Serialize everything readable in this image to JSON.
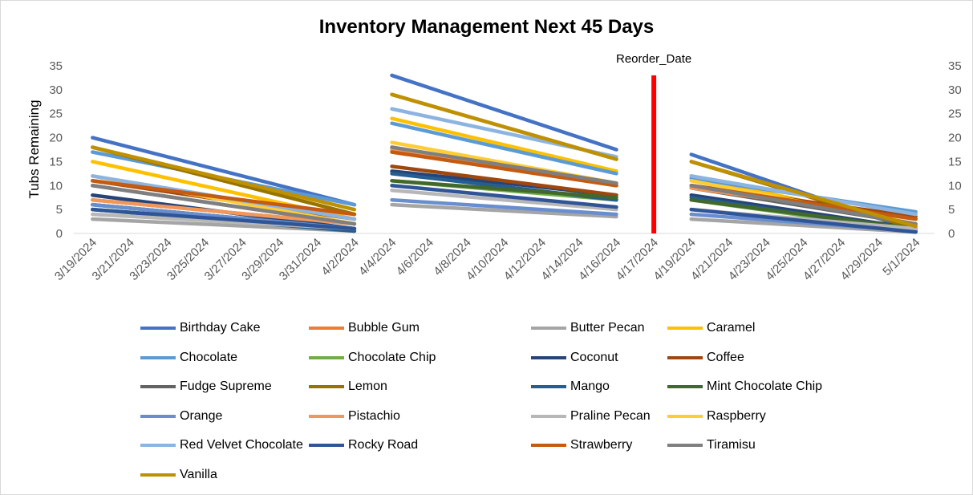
{
  "chart_data": {
    "type": "line",
    "title": "Inventory Management Next 45 Days",
    "ylabel": "Tubs Remaining",
    "xlabel": "",
    "ylim": [
      0,
      35
    ],
    "yticks": [
      0,
      5,
      10,
      15,
      20,
      25,
      30,
      35
    ],
    "secondary_y_axis": true,
    "grid": false,
    "legend_position": "bottom",
    "x_tick_labels": [
      "3/19/2024",
      "3/21/2024",
      "3/23/2024",
      "3/25/2024",
      "3/27/2024",
      "3/29/2024",
      "3/31/2024",
      "4/2/2024",
      "4/4/2024",
      "4/6/2024",
      "4/8/2024",
      "4/10/2024",
      "4/12/2024",
      "4/14/2024",
      "4/16/2024",
      "4/17/2024",
      "4/19/2024",
      "4/21/2024",
      "4/23/2024",
      "4/25/2024",
      "4/27/2024",
      "4/29/2024",
      "5/1/2024"
    ],
    "segments_x": [
      [
        "3/19/2024",
        "4/2/2024"
      ],
      [
        "4/3/2024",
        "4/16/2024"
      ],
      [
        "4/18/2024",
        "5/1/2024"
      ]
    ],
    "annotations": [
      {
        "label": "Reorder_Date",
        "x": "4/17/2024",
        "color": "#ff0000"
      }
    ],
    "series": [
      {
        "name": "Birthday Cake",
        "color": "#4472c4",
        "segments": [
          [
            20,
            6
          ],
          [
            33,
            17.5
          ],
          [
            16.5,
            0.5
          ]
        ]
      },
      {
        "name": "Bubble Gum",
        "color": "#ed7d31",
        "segments": [
          [
            7,
            2
          ],
          [
            17,
            10
          ],
          [
            10,
            3
          ]
        ]
      },
      {
        "name": "Butter Pecan",
        "color": "#a5a5a5",
        "segments": [
          [
            3,
            0.5
          ],
          [
            6,
            3.5
          ],
          [
            3,
            0.3
          ]
        ]
      },
      {
        "name": "Caramel",
        "color": "#ffc000",
        "segments": [
          [
            15,
            3
          ],
          [
            24,
            13
          ],
          [
            12,
            1.5
          ]
        ]
      },
      {
        "name": "Chocolate",
        "color": "#5b9bd5",
        "segments": [
          [
            17,
            6
          ],
          [
            23,
            12.5
          ],
          [
            11.5,
            4.5
          ]
        ]
      },
      {
        "name": "Chocolate Chip",
        "color": "#70ad47",
        "segments": [
          [
            6,
            1
          ],
          [
            11,
            7
          ],
          [
            7,
            0.5
          ]
        ]
      },
      {
        "name": "Coconut",
        "color": "#264478",
        "segments": [
          [
            8,
            1
          ],
          [
            13,
            8
          ],
          [
            8,
            1
          ]
        ]
      },
      {
        "name": "Coffee",
        "color": "#9e480e",
        "segments": [
          [
            11,
            3
          ],
          [
            14,
            8
          ],
          [
            10,
            3.5
          ]
        ]
      },
      {
        "name": "Fudge Supreme",
        "color": "#636363",
        "segments": [
          [
            10,
            2
          ],
          [
            18,
            10
          ],
          [
            9.5,
            2
          ]
        ]
      },
      {
        "name": "Lemon",
        "color": "#997300",
        "segments": [
          [
            18,
            4
          ],
          [
            29,
            15.5
          ],
          [
            15,
            1
          ]
        ]
      },
      {
        "name": "Mango",
        "color": "#255e91",
        "segments": [
          [
            5,
            0.5
          ],
          [
            12.5,
            7
          ],
          [
            7.5,
            0.5
          ]
        ]
      },
      {
        "name": "Mint Chocolate Chip",
        "color": "#43682b",
        "segments": [
          [
            6,
            1
          ],
          [
            11,
            7.5
          ],
          [
            7,
            1
          ]
        ]
      },
      {
        "name": "Orange",
        "color": "#698ed0",
        "segments": [
          [
            6,
            1
          ],
          [
            7,
            4
          ],
          [
            4,
            0.5
          ]
        ]
      },
      {
        "name": "Pistachio",
        "color": "#f1975a",
        "segments": [
          [
            7,
            2
          ],
          [
            17.5,
            10
          ],
          [
            9.5,
            3
          ]
        ]
      },
      {
        "name": "Praline Pecan",
        "color": "#b7b7b7",
        "segments": [
          [
            4,
            1
          ],
          [
            9,
            5
          ],
          [
            5,
            1
          ]
        ]
      },
      {
        "name": "Raspberry",
        "color": "#ffcd33",
        "segments": [
          [
            12,
            2
          ],
          [
            19,
            10.5
          ],
          [
            11,
            2
          ]
        ]
      },
      {
        "name": "Red Velvet Chocolate",
        "color": "#8cb4e1",
        "segments": [
          [
            12,
            3
          ],
          [
            26,
            16
          ],
          [
            12,
            4
          ]
        ]
      },
      {
        "name": "Rocky Road",
        "color": "#2f5597",
        "segments": [
          [
            5,
            1
          ],
          [
            10,
            5.5
          ],
          [
            5,
            0.3
          ]
        ]
      },
      {
        "name": "Strawberry",
        "color": "#c55a11",
        "segments": [
          [
            11,
            4
          ],
          [
            17,
            10
          ],
          [
            10,
            3
          ]
        ]
      },
      {
        "name": "Tiramisu",
        "color": "#7f7f7f",
        "segments": [
          [
            10,
            2
          ],
          [
            18,
            10.5
          ],
          [
            10,
            2
          ]
        ]
      },
      {
        "name": "Vanilla",
        "color": "#bf9000",
        "segments": [
          [
            18,
            5
          ],
          [
            29,
            15.5
          ],
          [
            15,
            1.5
          ]
        ]
      }
    ]
  }
}
